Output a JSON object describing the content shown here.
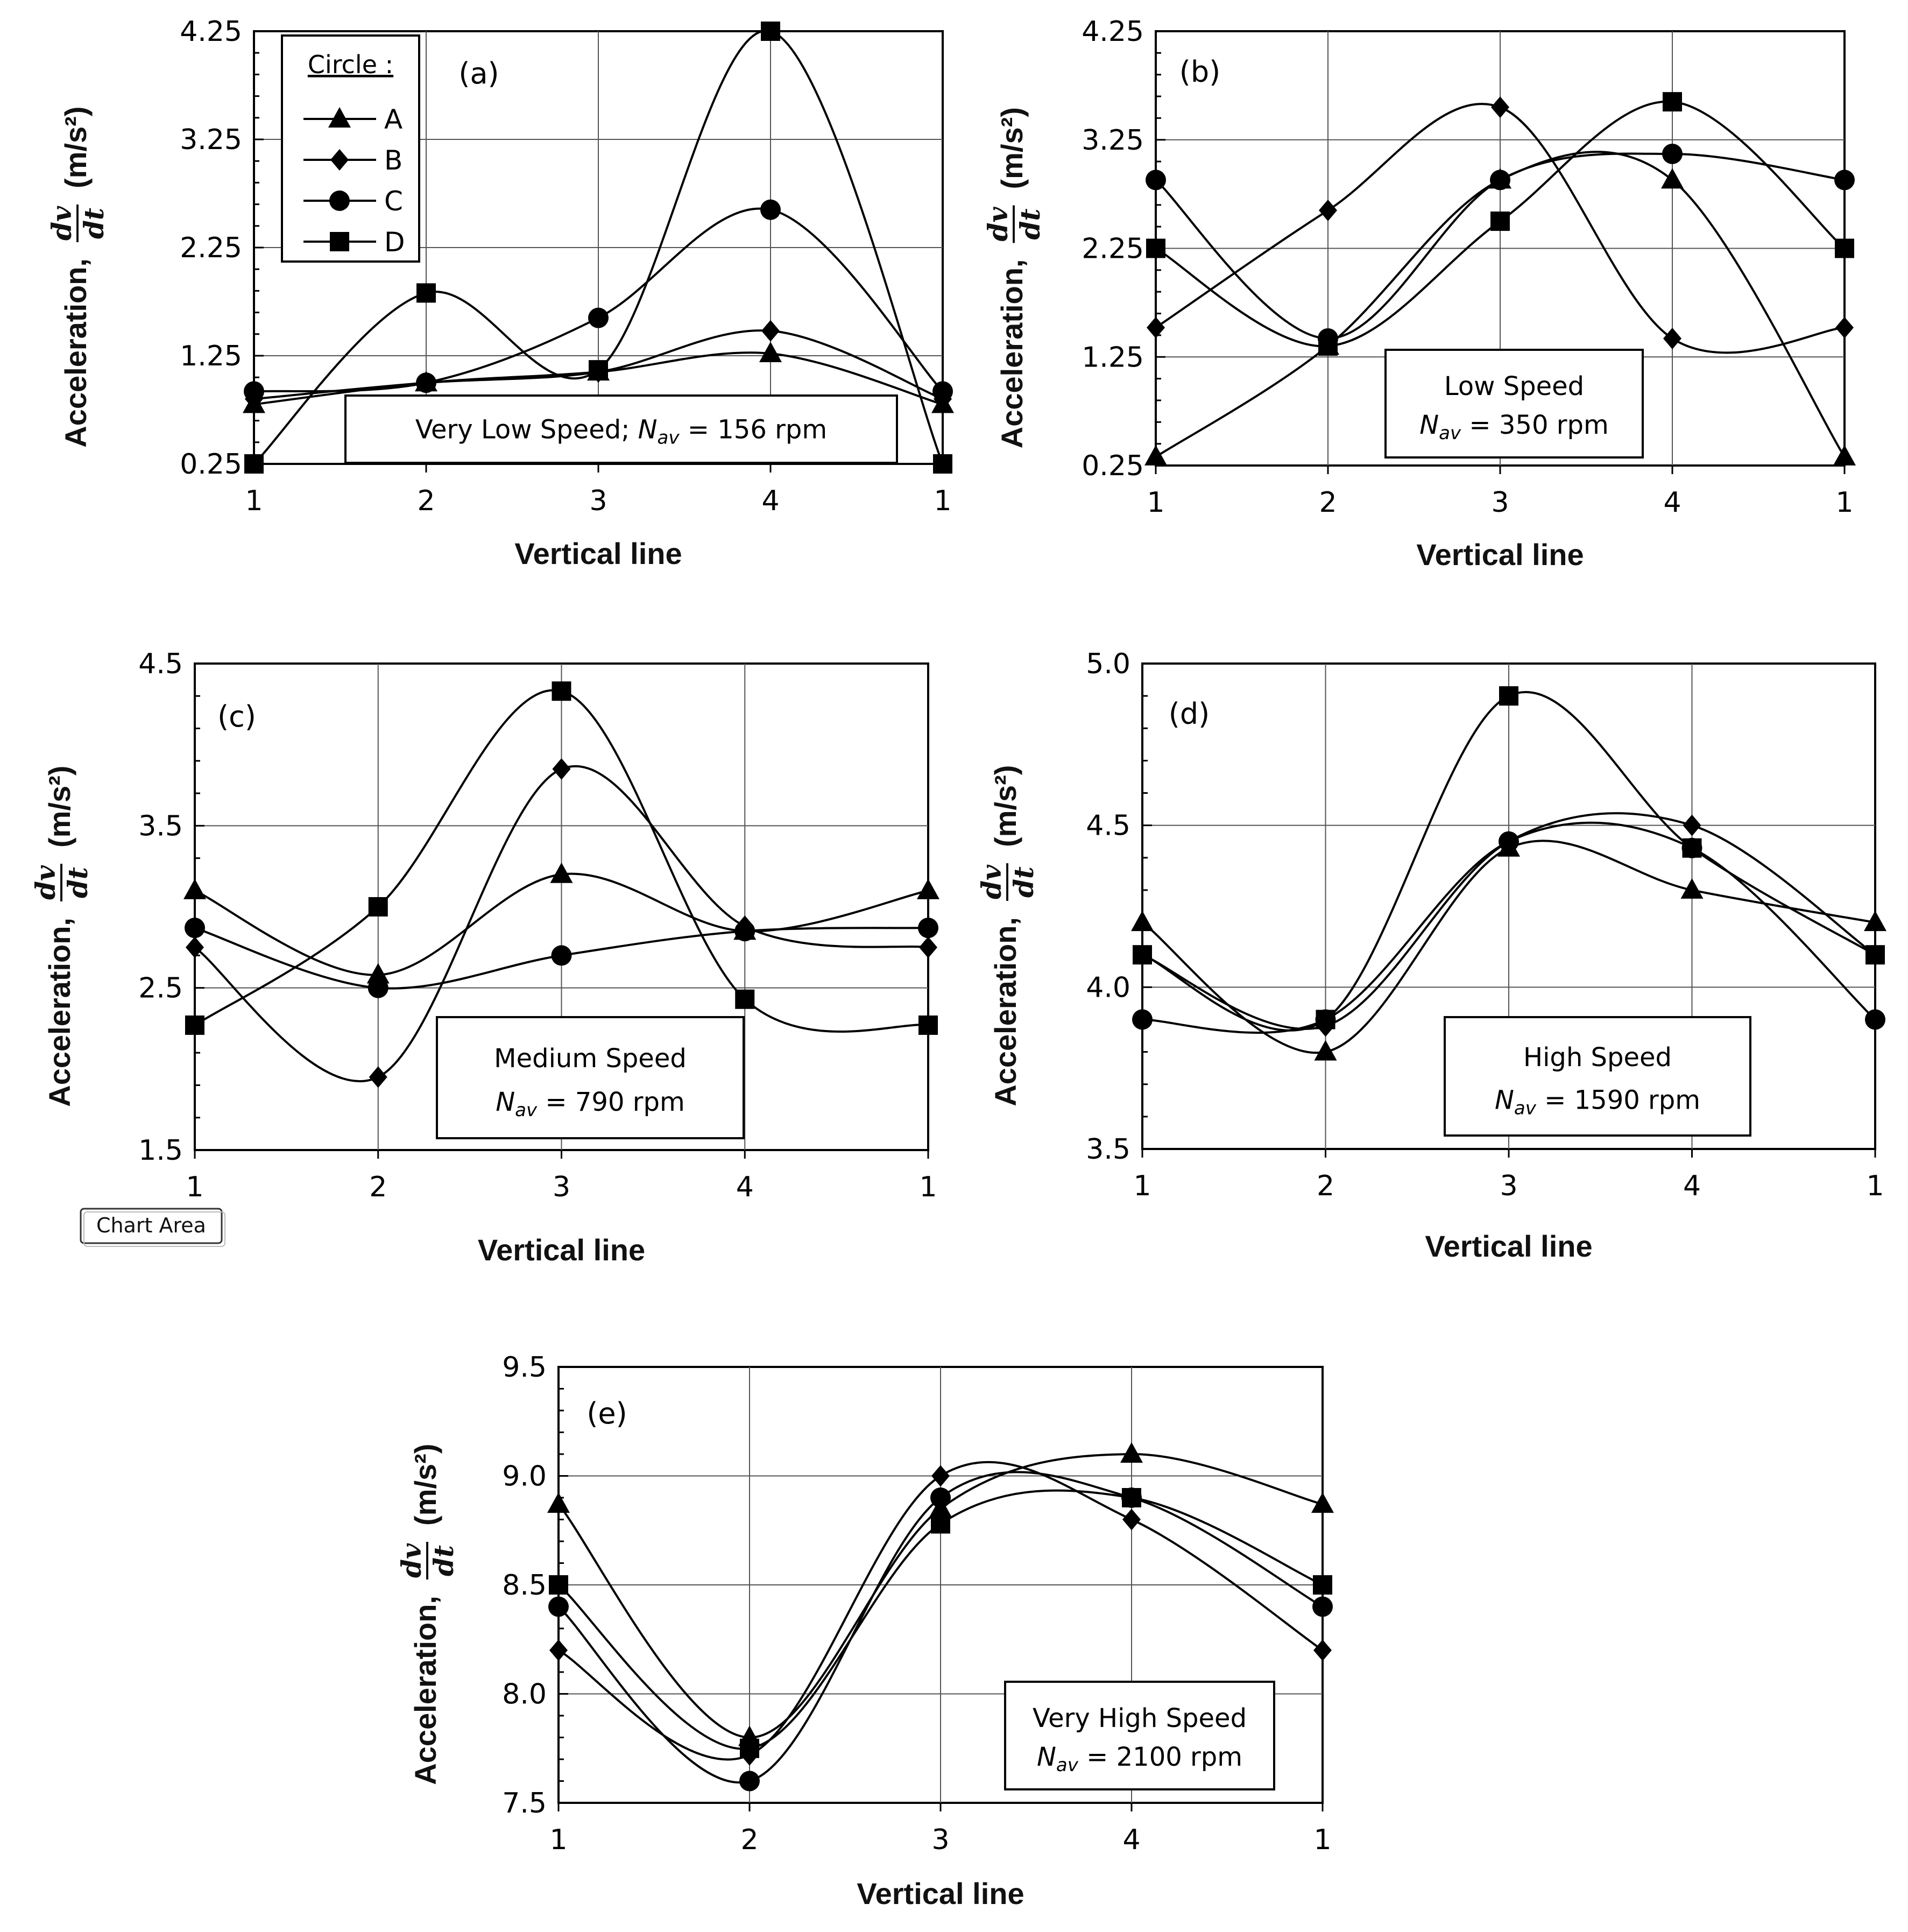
{
  "figure": {
    "ui_tooltip": "Chart Area"
  },
  "chart_data": [
    {
      "type": "line",
      "panel": "(a)",
      "categories": [
        "1",
        "2",
        "3",
        "4",
        "1"
      ],
      "xlabel": "Vertical line",
      "ylabel": "Acceleration,",
      "ylabel_fraction": {
        "num": "dv",
        "den": "dt"
      },
      "ylabel_unit": "(m/s²)",
      "ylim": [
        0.25,
        4.25
      ],
      "yticks": [
        "0.25",
        "1.25",
        "2.25",
        "3.25",
        "4.25"
      ],
      "info_box": {
        "line1": "Very Low Speed; N",
        "sub": "av",
        "line1_rest": " = 156 rpm"
      },
      "legend": {
        "title": "Circle :",
        "entries": [
          "A",
          "B",
          "C",
          "D"
        ]
      },
      "series": [
        {
          "name": "A",
          "marker": "triangle",
          "values": [
            0.8,
            1.0,
            1.1,
            1.27,
            0.8
          ]
        },
        {
          "name": "B",
          "marker": "diamond",
          "values": [
            0.85,
            1.0,
            1.1,
            1.48,
            0.85
          ]
        },
        {
          "name": "C",
          "marker": "circle",
          "values": [
            0.92,
            1.0,
            1.6,
            2.6,
            0.92
          ]
        },
        {
          "name": "D",
          "marker": "square",
          "values": [
            0.25,
            1.83,
            1.12,
            4.25,
            0.25
          ]
        }
      ]
    },
    {
      "type": "line",
      "panel": "(b)",
      "categories": [
        "1",
        "2",
        "3",
        "4",
        "1"
      ],
      "xlabel": "Vertical line",
      "ylabel": "Acceleration,",
      "ylabel_fraction": {
        "num": "dv",
        "den": "dt"
      },
      "ylabel_unit": "(m/s²)",
      "ylim": [
        0.25,
        4.25
      ],
      "yticks": [
        "0.25",
        "1.25",
        "2.25",
        "3.25",
        "4.25"
      ],
      "info_box": {
        "line1": "Low Speed",
        "line2_prefix": "N",
        "sub": "av",
        "line2_rest": " = 350 rpm"
      },
      "series": [
        {
          "name": "A",
          "marker": "triangle",
          "values": [
            0.33,
            1.35,
            2.88,
            2.88,
            0.33
          ]
        },
        {
          "name": "B",
          "marker": "diamond",
          "values": [
            1.52,
            2.6,
            3.55,
            1.42,
            1.52
          ]
        },
        {
          "name": "C",
          "marker": "circle",
          "values": [
            2.88,
            1.42,
            2.88,
            3.12,
            2.88
          ]
        },
        {
          "name": "D",
          "marker": "square",
          "values": [
            2.25,
            1.35,
            2.5,
            3.6,
            2.25
          ]
        }
      ]
    },
    {
      "type": "line",
      "panel": "(c)",
      "categories": [
        "1",
        "2",
        "3",
        "4",
        "1"
      ],
      "xlabel": "Vertical line",
      "ylabel": "Acceleration,",
      "ylabel_fraction": {
        "num": "dv",
        "den": "dt"
      },
      "ylabel_unit": "(m/s²)",
      "ylim": [
        1.5,
        4.5
      ],
      "yticks": [
        "1.5",
        "2.5",
        "3.5",
        "4.5"
      ],
      "info_box": {
        "line1": "Medium Speed",
        "line2_prefix": "N",
        "sub": "av",
        "line2_rest": " = 790 rpm"
      },
      "series": [
        {
          "name": "A",
          "marker": "triangle",
          "values": [
            3.1,
            2.58,
            3.2,
            2.85,
            3.1
          ]
        },
        {
          "name": "B",
          "marker": "diamond",
          "values": [
            2.75,
            1.95,
            3.85,
            2.88,
            2.75
          ]
        },
        {
          "name": "C",
          "marker": "circle",
          "values": [
            2.87,
            2.5,
            2.7,
            2.85,
            2.87
          ]
        },
        {
          "name": "D",
          "marker": "square",
          "values": [
            2.27,
            3.0,
            4.33,
            2.43,
            2.27
          ]
        }
      ]
    },
    {
      "type": "line",
      "panel": "(d)",
      "categories": [
        "1",
        "2",
        "3",
        "4",
        "1"
      ],
      "xlabel": "Vertical line",
      "ylabel": "Acceleration,",
      "ylabel_fraction": {
        "num": "dv",
        "den": "dt"
      },
      "ylabel_unit": "(m/s²)",
      "ylim": [
        3.5,
        5.0
      ],
      "yticks": [
        "3.5",
        "4.0",
        "4.5",
        "5.0"
      ],
      "info_box": {
        "line1": "High Speed",
        "line2_prefix": "N",
        "sub": "av",
        "line2_rest": " = 1590 rpm"
      },
      "series": [
        {
          "name": "A",
          "marker": "triangle",
          "values": [
            4.2,
            3.8,
            4.43,
            4.3,
            4.2
          ]
        },
        {
          "name": "B",
          "marker": "diamond",
          "values": [
            4.1,
            3.88,
            4.45,
            4.5,
            4.1
          ]
        },
        {
          "name": "C",
          "marker": "circle",
          "values": [
            3.9,
            3.9,
            4.45,
            4.43,
            3.9
          ]
        },
        {
          "name": "D",
          "marker": "square",
          "values": [
            4.1,
            3.9,
            4.9,
            4.43,
            4.1
          ]
        }
      ]
    },
    {
      "type": "line",
      "panel": "(e)",
      "categories": [
        "1",
        "2",
        "3",
        "4",
        "1"
      ],
      "xlabel": "Vertical line",
      "ylabel": "Acceleration,",
      "ylabel_fraction": {
        "num": "dv",
        "den": "dt"
      },
      "ylabel_unit": "(m/s²)",
      "ylim": [
        7.5,
        9.5
      ],
      "yticks": [
        "7.5",
        "8.0",
        "8.5",
        "9.0",
        "9.5"
      ],
      "info_box": {
        "line1": "Very High Speed",
        "line2_prefix": "N",
        "sub": "av",
        "line2_rest": " = 2100 rpm"
      },
      "series": [
        {
          "name": "A",
          "marker": "triangle",
          "values": [
            8.87,
            7.8,
            8.85,
            9.1,
            8.87
          ]
        },
        {
          "name": "B",
          "marker": "diamond",
          "values": [
            8.2,
            7.72,
            9.0,
            8.8,
            8.2
          ]
        },
        {
          "name": "C",
          "marker": "circle",
          "values": [
            8.4,
            7.6,
            8.9,
            8.9,
            8.4
          ]
        },
        {
          "name": "D",
          "marker": "square",
          "values": [
            8.5,
            7.75,
            8.78,
            8.9,
            8.5
          ]
        }
      ]
    }
  ]
}
